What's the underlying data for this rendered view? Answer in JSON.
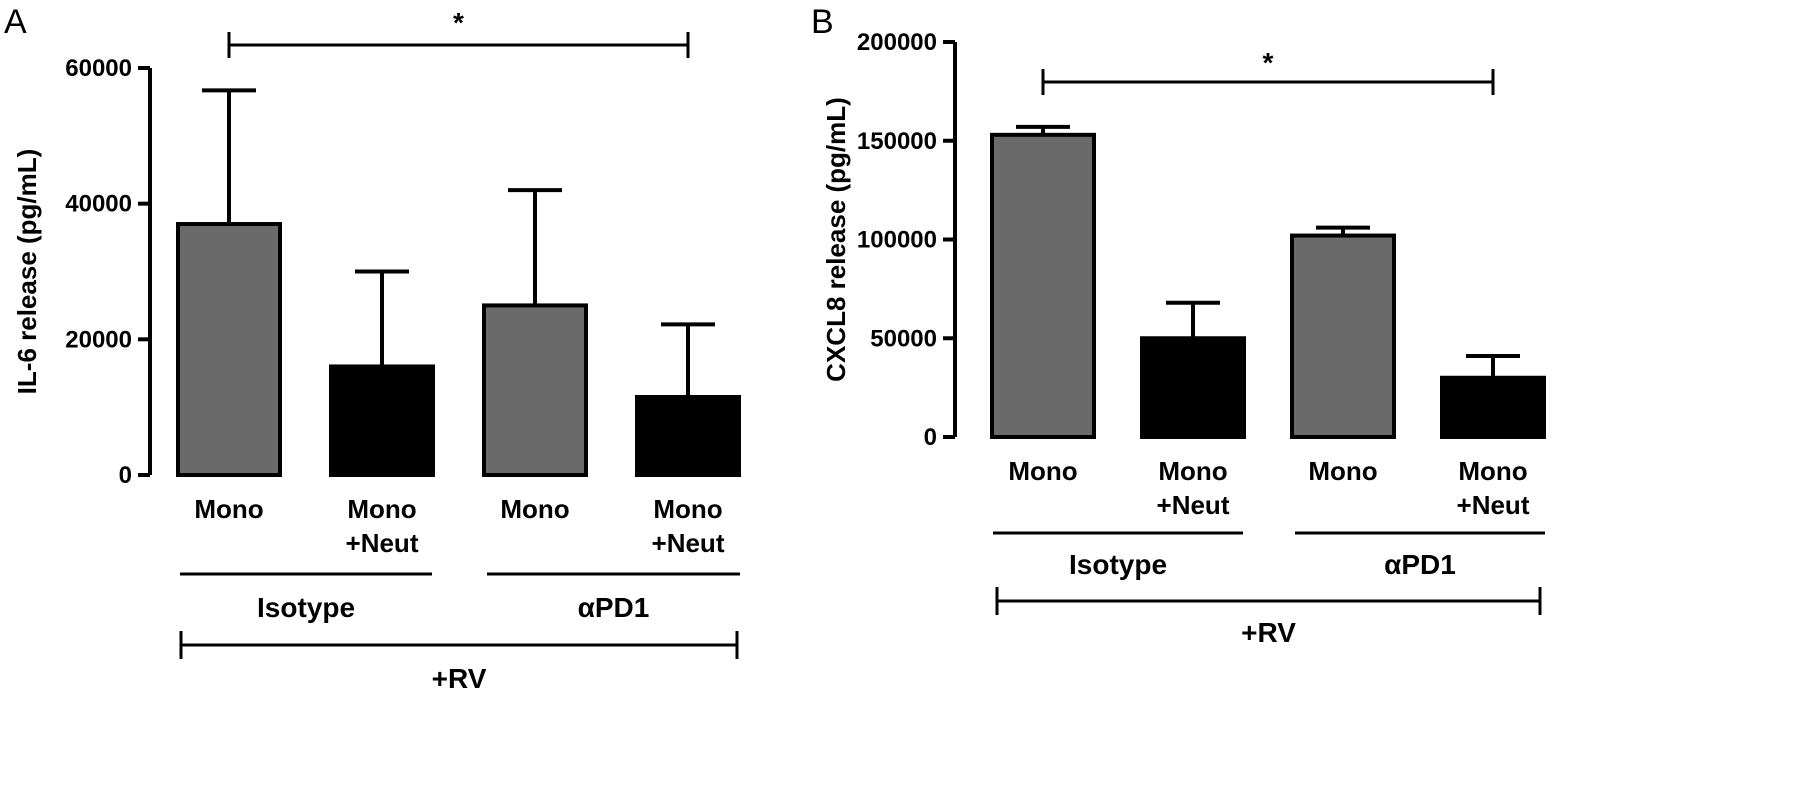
{
  "colors": {
    "grey": "#6a6a6a",
    "black": "#000000"
  },
  "chart_data": [
    {
      "type": "bar",
      "panel": "A",
      "ylabel": "IL-6 release (pg/mL)",
      "ylim": [
        0,
        60000
      ],
      "yticks": [
        0,
        20000,
        40000,
        60000
      ],
      "ytick_labels": [
        "0",
        "20000",
        "40000",
        "60000"
      ],
      "categories": [
        {
          "lines": [
            "Mono"
          ],
          "value": 37000,
          "error": 19700,
          "color": "grey"
        },
        {
          "lines": [
            "Mono",
            "+Neut"
          ],
          "value": 16000,
          "error": 14000,
          "color": "black"
        },
        {
          "lines": [
            "Mono"
          ],
          "value": 25000,
          "error": 17000,
          "color": "grey"
        },
        {
          "lines": [
            "Mono",
            "+Neut"
          ],
          "value": 11500,
          "error": 10700,
          "color": "black"
        }
      ],
      "groups": [
        {
          "label": "Isotype",
          "from": 0,
          "to": 1
        },
        {
          "label": "αPD1",
          "from": 2,
          "to": 3
        }
      ],
      "bracket_label": "+RV",
      "significance": {
        "from": 0,
        "to": 3,
        "label": "*"
      }
    },
    {
      "type": "bar",
      "panel": "B",
      "ylabel": "CXCL8 release (pg/mL)",
      "ylim": [
        0,
        200000
      ],
      "yticks": [
        0,
        50000,
        100000,
        150000,
        200000
      ],
      "ytick_labels": [
        "0",
        "50000",
        "100000",
        "150000",
        "200000"
      ],
      "categories": [
        {
          "lines": [
            "Mono"
          ],
          "value": 153000,
          "error": 4000,
          "color": "grey"
        },
        {
          "lines": [
            "Mono",
            "+Neut"
          ],
          "value": 50000,
          "error": 18000,
          "color": "black"
        },
        {
          "lines": [
            "Mono"
          ],
          "value": 102000,
          "error": 4000,
          "color": "grey"
        },
        {
          "lines": [
            "Mono",
            "+Neut"
          ],
          "value": 30000,
          "error": 11000,
          "color": "black"
        }
      ],
      "groups": [
        {
          "label": "Isotype",
          "from": 0,
          "to": 1
        },
        {
          "label": "αPD1",
          "from": 2,
          "to": 3
        }
      ],
      "bracket_label": "+RV",
      "significance": {
        "from": 0,
        "to": 3,
        "label": "*"
      }
    }
  ]
}
